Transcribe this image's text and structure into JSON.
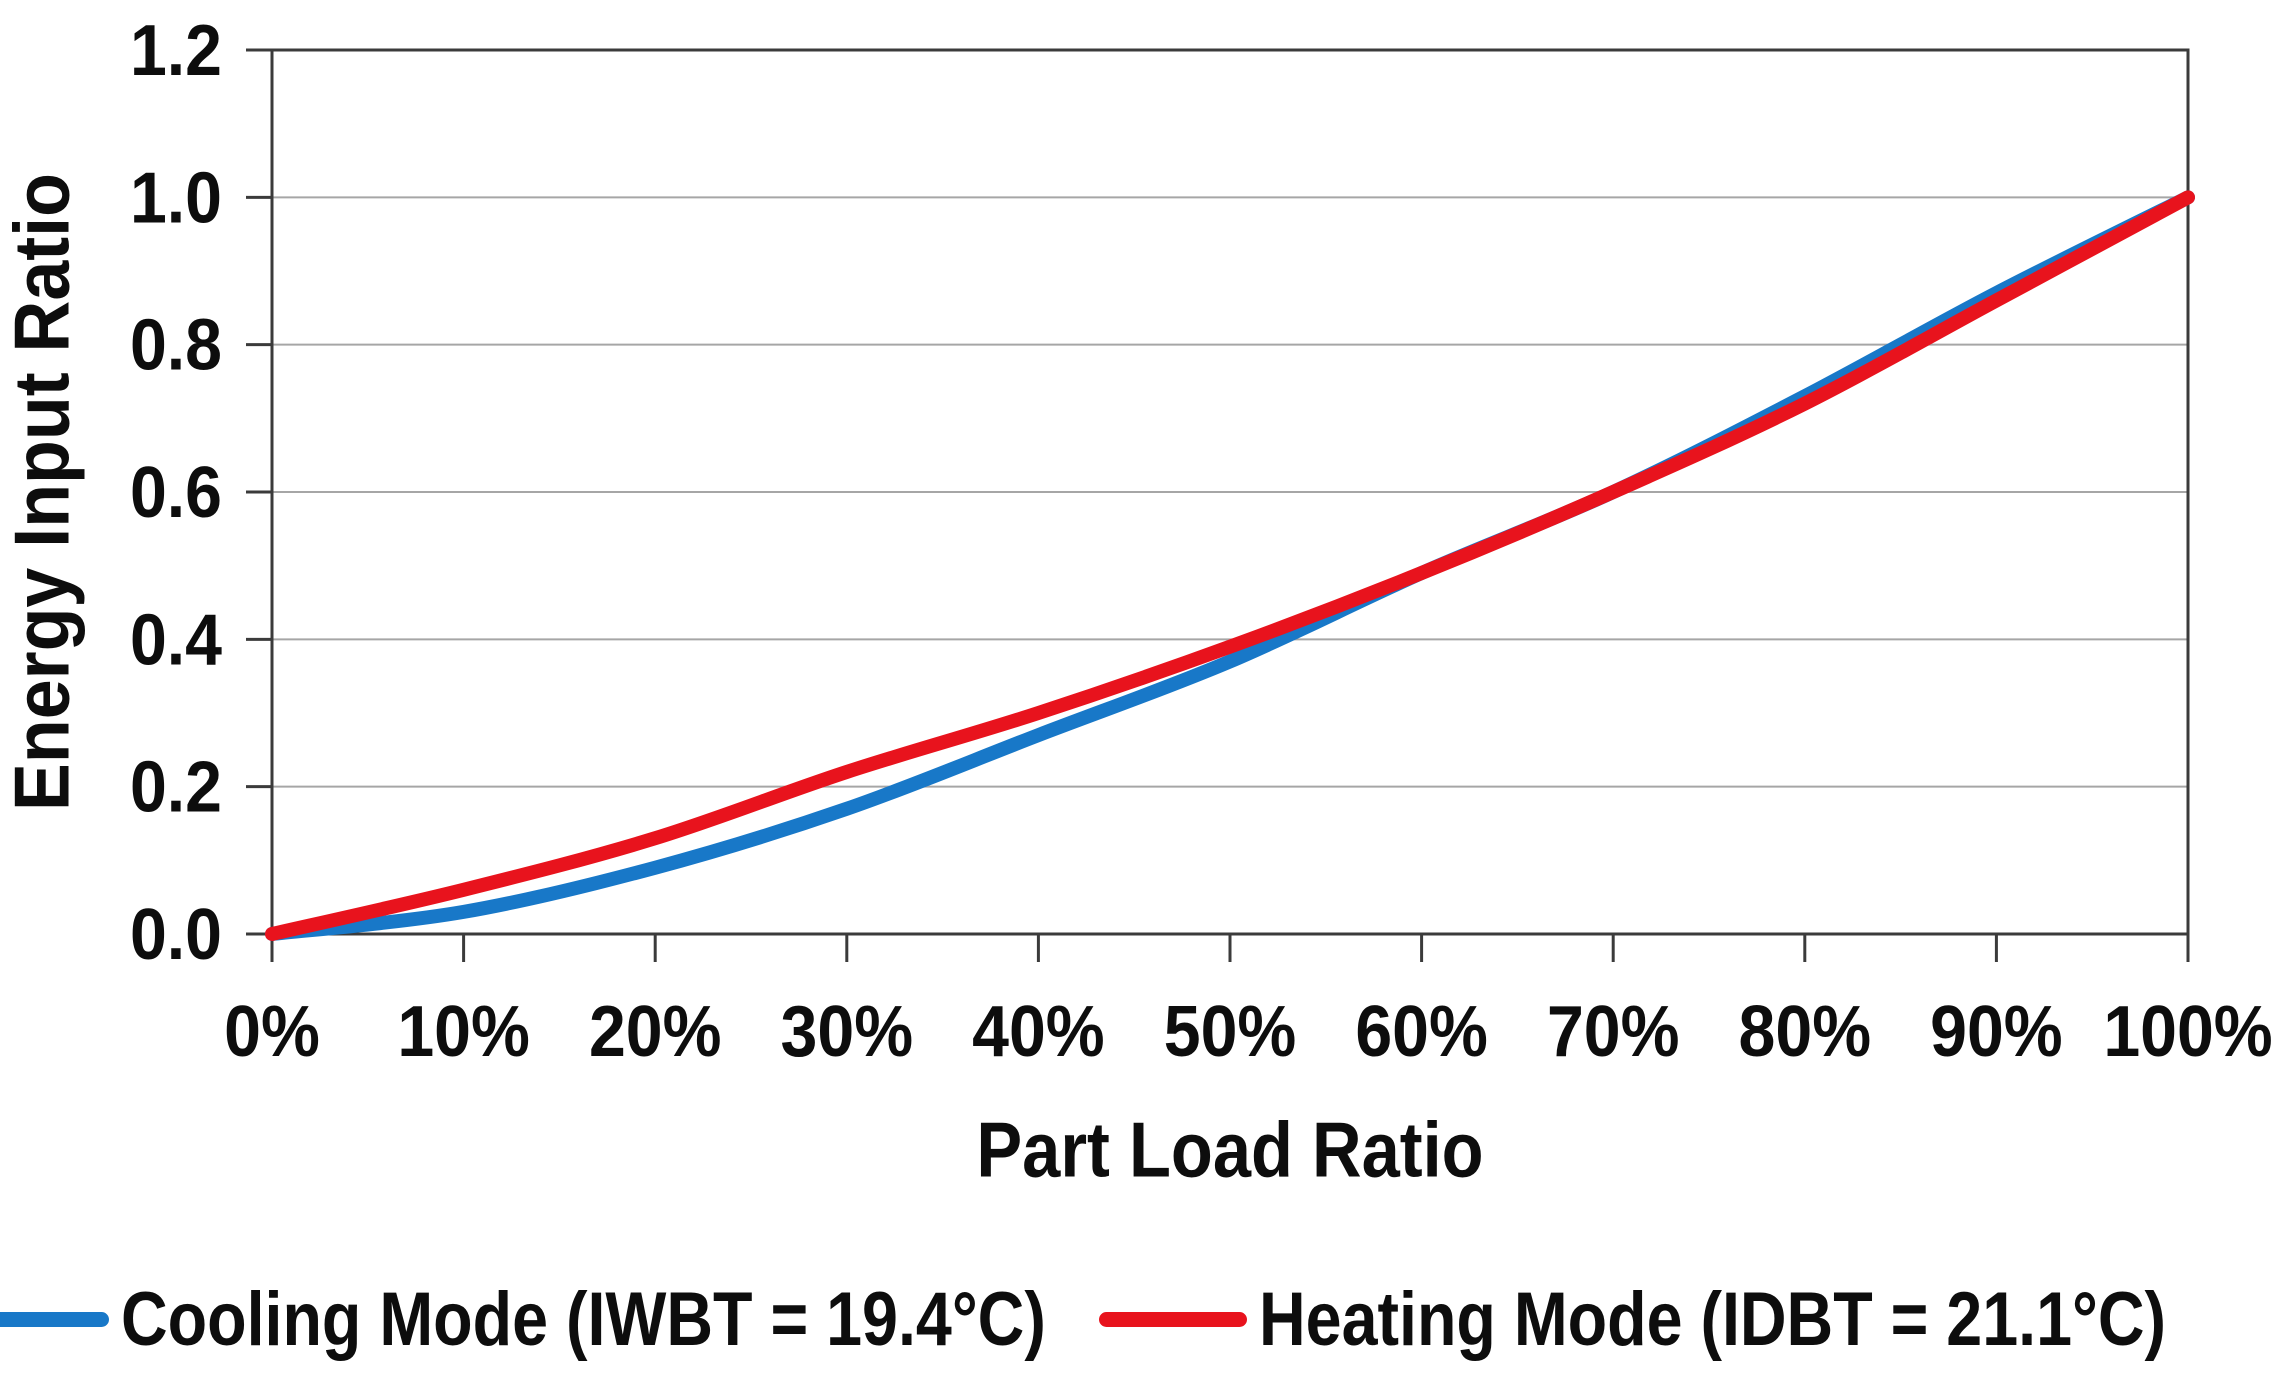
{
  "page": {
    "background": "#FFFFFF"
  },
  "chart_data": {
    "type": "line",
    "title": "",
    "xlabel": "Part Load Ratio",
    "ylabel": "Energy Input Ratio",
    "xlim": [
      0,
      100
    ],
    "ylim": [
      0,
      1.2
    ],
    "grid": "horizontal",
    "legend_position": "bottom",
    "x_unit": "percent",
    "x": [
      0,
      10,
      20,
      30,
      40,
      50,
      60,
      70,
      80,
      90,
      100
    ],
    "x_tick_labels": [
      "0%",
      "10%",
      "20%",
      "30%",
      "40%",
      "50%",
      "60%",
      "70%",
      "80%",
      "90%",
      "100%"
    ],
    "y_ticks": [
      0.0,
      0.2,
      0.4,
      0.6,
      0.8,
      1.0,
      1.2
    ],
    "y_tick_labels": [
      "0.0",
      "0.2",
      "0.4",
      "0.6",
      "0.8",
      "1.0",
      "1.2"
    ],
    "series": [
      {
        "name": "Cooling Mode (IWBT = 19.4°C)",
        "color": "#1878C8",
        "values": [
          0.0,
          0.03,
          0.09,
          0.17,
          0.27,
          0.37,
          0.49,
          0.6,
          0.73,
          0.87,
          1.0
        ]
      },
      {
        "name": "Heating Mode (IDBT = 21.1°C)",
        "color": "#E8131D",
        "values": [
          0.0,
          0.06,
          0.13,
          0.22,
          0.3,
          0.39,
          0.49,
          0.6,
          0.72,
          0.86,
          1.0
        ]
      }
    ],
    "axis_color": "#3B3B3B",
    "grid_color": "#A6A6A6",
    "tick_label_color": "#0D0D0D"
  }
}
